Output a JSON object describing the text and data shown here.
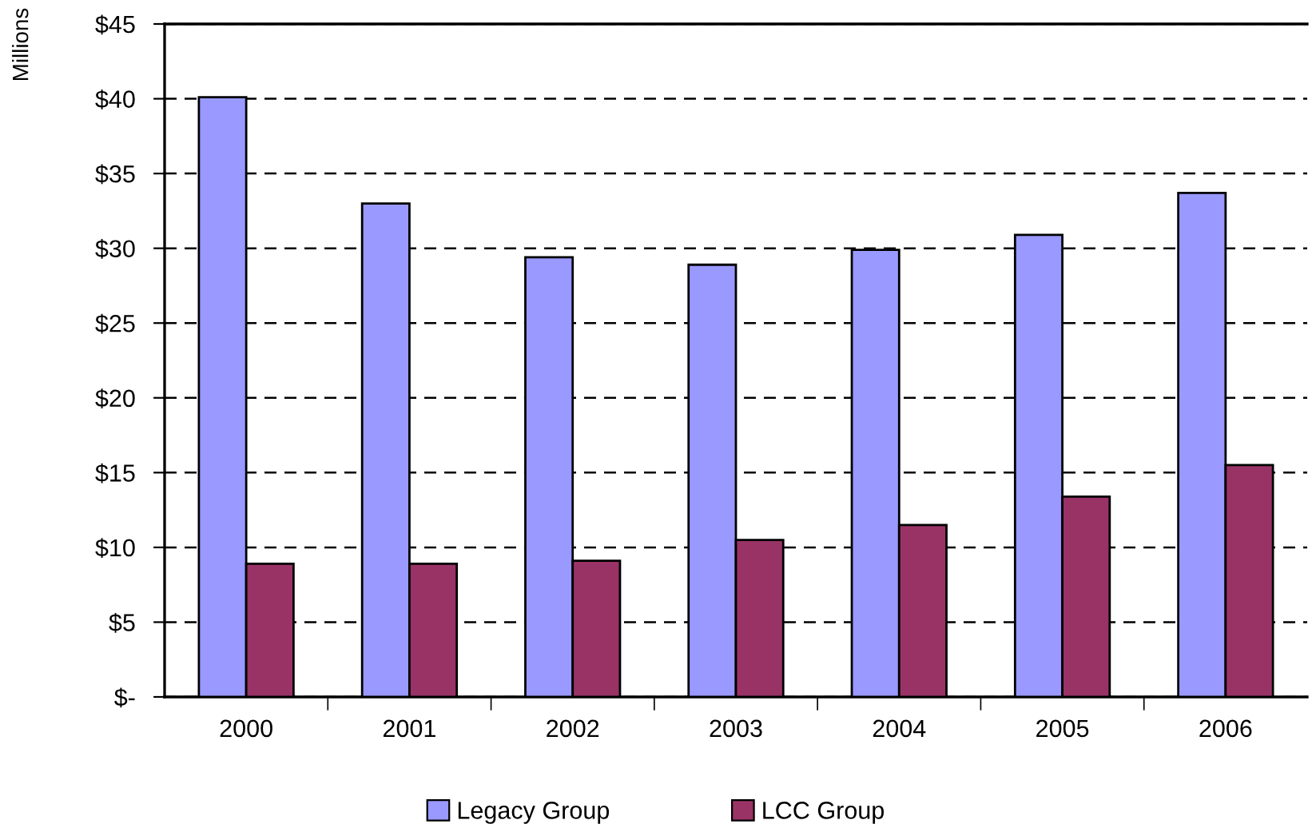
{
  "chart_data": {
    "type": "bar",
    "ylabel": "Millions",
    "categories": [
      "2000",
      "2001",
      "2002",
      "2003",
      "2004",
      "2005",
      "2006"
    ],
    "series": [
      {
        "name": "Legacy Group",
        "color": "#9999ff",
        "values": [
          40.1,
          33.0,
          29.4,
          28.9,
          29.9,
          30.9,
          33.7
        ]
      },
      {
        "name": "LCC Group",
        "color": "#993366",
        "values": [
          8.9,
          8.9,
          9.1,
          10.5,
          11.5,
          13.4,
          15.5
        ]
      }
    ],
    "ylim": [
      0,
      45
    ],
    "yticks": [
      {
        "value": 0,
        "label": "$-"
      },
      {
        "value": 5,
        "label": "$5"
      },
      {
        "value": 10,
        "label": "$10"
      },
      {
        "value": 15,
        "label": "$15"
      },
      {
        "value": 20,
        "label": "$20"
      },
      {
        "value": 25,
        "label": "$25"
      },
      {
        "value": 30,
        "label": "$30"
      },
      {
        "value": 35,
        "label": "$35"
      },
      {
        "value": 40,
        "label": "$40"
      },
      {
        "value": 45,
        "label": "$45"
      }
    ],
    "grid": "y",
    "legend": "bottom",
    "line_style": "dashed"
  }
}
